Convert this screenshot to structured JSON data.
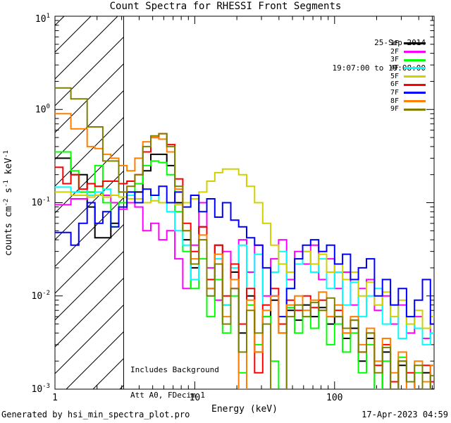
{
  "title": "Count Spectra for RHESSI Front Segments",
  "footer": {
    "left": "Generated by hsi_min_spectra_plot.pro",
    "right": "17-Apr-2023 04:59"
  },
  "chart_data": {
    "type": "line",
    "subtype": "log-log step spectra",
    "title": "Count Spectra for RHESSI Front Segments",
    "xlabel": "Energy (keV)",
    "ylabel": "counts cm-2 s-1 keV-1",
    "ylabel_segments": [
      {
        "t": "counts cm"
      },
      {
        "t": "-2",
        "sup": true
      },
      {
        "t": " s"
      },
      {
        "t": "-1",
        "sup": true
      },
      {
        "t": " keV"
      },
      {
        "t": "-1",
        "sup": true
      }
    ],
    "date_label": "25-Sep-2014",
    "time_label": "19:07:00 to 19:08:00",
    "annotations": [
      "Includes Background",
      "Att A0, FDecim 1"
    ],
    "grid": false,
    "legend_position": "top-right-inside",
    "xscale": "log",
    "yscale": "log",
    "xlim": [
      1,
      515
    ],
    "ylim": [
      0.001,
      10
    ],
    "x_major_ticks": [
      1,
      10,
      100
    ],
    "y_major_tick_exponents": [
      1,
      0,
      -1,
      -2,
      -3
    ],
    "hatch_region": {
      "x_from": 1,
      "x_to": 3.1
    },
    "energies_keV": [
      1.0,
      1.14,
      1.3,
      1.48,
      1.7,
      1.93,
      2.2,
      2.51,
      2.86,
      3.27,
      3.73,
      4.25,
      4.85,
      5.53,
      6.31,
      7.2,
      8.21,
      9.36,
      10.7,
      12.2,
      13.9,
      15.8,
      18.1,
      20.6,
      23.5,
      26.8,
      30.6,
      34.9,
      39.8,
      45.4,
      51.8,
      59.1,
      67.4,
      76.9,
      87.7,
      100,
      114,
      130,
      148,
      169,
      193,
      220,
      251,
      286,
      327,
      373,
      425,
      485
    ],
    "series": [
      {
        "name": "1F",
        "color": "#000000",
        "values": [
          0.3,
          0.3,
          0.2,
          0.2,
          0.09,
          0.042,
          0.042,
          0.06,
          0.1,
          0.1,
          0.13,
          0.22,
          0.33,
          0.33,
          0.25,
          0.1,
          0.04,
          0.02,
          0.055,
          0.012,
          0.035,
          0.008,
          0.018,
          0.004,
          0.01,
          0.0025,
          0.006,
          0.009,
          0.004,
          0.007,
          0.0055,
          0.008,
          0.006,
          0.0075,
          0.005,
          0.006,
          0.0035,
          0.0045,
          0.002,
          0.0035,
          0.0008,
          0.0025,
          0.001,
          0.0018,
          0.0012,
          0.0008,
          0.0015,
          0.001
        ]
      },
      {
        "name": "2F",
        "color": "#FF00FF",
        "values": [
          0.095,
          0.095,
          0.11,
          0.11,
          0.13,
          0.12,
          0.12,
          0.1,
          0.085,
          0.1,
          0.09,
          0.05,
          0.06,
          0.04,
          0.05,
          0.025,
          0.012,
          0.035,
          0.1,
          0.02,
          0.009,
          0.03,
          0.012,
          0.04,
          0.018,
          0.035,
          0.01,
          0.025,
          0.04,
          0.015,
          0.03,
          0.022,
          0.035,
          0.015,
          0.025,
          0.012,
          0.018,
          0.008,
          0.012,
          0.015,
          0.007,
          0.01,
          0.005,
          0.008,
          0.004,
          0.006,
          0.0035,
          0.005
        ]
      },
      {
        "name": "3F",
        "color": "#00FF00",
        "values": [
          0.35,
          0.35,
          0.22,
          0.13,
          0.13,
          0.25,
          0.1,
          0.055,
          0.1,
          0.13,
          0.16,
          0.25,
          0.28,
          0.27,
          0.2,
          0.08,
          0.03,
          0.012,
          0.025,
          0.006,
          0.015,
          0.004,
          0.01,
          0.0015,
          0.008,
          0.003,
          0.006,
          0.002,
          0.0008,
          0.0075,
          0.004,
          0.006,
          0.0045,
          0.007,
          0.003,
          0.005,
          0.0025,
          0.004,
          0.0015,
          0.003,
          0.001,
          0.002,
          0.0012,
          0.0022,
          0.0008,
          0.0015,
          0.001,
          0.0018
        ]
      },
      {
        "name": "4F",
        "color": "#00FFFF",
        "values": [
          0.147,
          0.147,
          0.13,
          0.14,
          0.12,
          0.13,
          0.14,
          0.12,
          0.13,
          0.12,
          0.11,
          0.1,
          0.12,
          0.1,
          0.08,
          0.05,
          0.035,
          0.015,
          0.04,
          0.01,
          0.025,
          0.008,
          0.02,
          0.035,
          0.012,
          0.028,
          0.008,
          0.018,
          0.03,
          0.012,
          0.022,
          0.03,
          0.018,
          0.025,
          0.012,
          0.018,
          0.008,
          0.014,
          0.006,
          0.01,
          0.012,
          0.005,
          0.008,
          0.0035,
          0.006,
          0.0045,
          0.003,
          0.004
        ]
      },
      {
        "name": "5F",
        "color": "#D1D100",
        "values": [
          0.13,
          0.13,
          0.12,
          0.12,
          0.115,
          0.12,
          0.115,
          0.12,
          0.115,
          0.11,
          0.11,
          0.1,
          0.105,
          0.1,
          0.1,
          0.095,
          0.1,
          0.11,
          0.13,
          0.17,
          0.21,
          0.23,
          0.23,
          0.2,
          0.15,
          0.1,
          0.06,
          0.035,
          0.022,
          0.018,
          0.025,
          0.03,
          0.022,
          0.028,
          0.018,
          0.022,
          0.015,
          0.018,
          0.01,
          0.014,
          0.008,
          0.011,
          0.006,
          0.009,
          0.005,
          0.007,
          0.0045,
          0.006
        ]
      },
      {
        "name": "6F",
        "color": "#FF0000",
        "values": [
          0.24,
          0.16,
          0.2,
          0.14,
          0.16,
          0.15,
          0.17,
          0.17,
          0.16,
          0.17,
          0.2,
          0.35,
          0.5,
          0.55,
          0.42,
          0.18,
          0.06,
          0.03,
          0.055,
          0.015,
          0.035,
          0.01,
          0.022,
          0.005,
          0.012,
          0.0015,
          0.008,
          0.012,
          0.005,
          0.009,
          0.007,
          0.01,
          0.0075,
          0.009,
          0.006,
          0.007,
          0.004,
          0.0055,
          0.0025,
          0.004,
          0.0018,
          0.003,
          0.0012,
          0.002,
          0.0015,
          0.001,
          0.0018,
          0.0012
        ]
      },
      {
        "name": "7F",
        "color": "#0000FF",
        "values": [
          0.048,
          0.048,
          0.035,
          0.06,
          0.1,
          0.06,
          0.08,
          0.055,
          0.09,
          0.13,
          0.1,
          0.14,
          0.12,
          0.15,
          0.1,
          0.13,
          0.09,
          0.12,
          0.08,
          0.11,
          0.07,
          0.1,
          0.065,
          0.055,
          0.042,
          0.035,
          0.02,
          0.01,
          0.006,
          0.012,
          0.025,
          0.035,
          0.04,
          0.03,
          0.035,
          0.022,
          0.028,
          0.015,
          0.02,
          0.025,
          0.01,
          0.015,
          0.008,
          0.012,
          0.006,
          0.009,
          0.015,
          0.005
        ]
      },
      {
        "name": "8F",
        "color": "#FF8000",
        "values": [
          0.9,
          0.9,
          0.62,
          0.62,
          0.4,
          0.38,
          0.33,
          0.3,
          0.25,
          0.22,
          0.3,
          0.45,
          0.5,
          0.48,
          0.35,
          0.14,
          0.05,
          0.025,
          0.045,
          0.012,
          0.028,
          0.006,
          0.015,
          0.0008,
          0.009,
          0.0025,
          0.007,
          0.01,
          0.004,
          0.008,
          0.01,
          0.007,
          0.009,
          0.011,
          0.006,
          0.008,
          0.004,
          0.006,
          0.003,
          0.0045,
          0.002,
          0.0035,
          0.0015,
          0.0025,
          0.001,
          0.002,
          0.0012,
          0.0018
        ]
      },
      {
        "name": "9F",
        "color": "#808000",
        "values": [
          1.7,
          1.7,
          1.3,
          1.3,
          0.65,
          0.65,
          0.28,
          0.28,
          0.13,
          0.15,
          0.2,
          0.4,
          0.52,
          0.55,
          0.4,
          0.15,
          0.05,
          0.022,
          0.04,
          0.01,
          0.022,
          0.005,
          0.012,
          0.0025,
          0.007,
          0.004,
          0.005,
          0.0008,
          0.0008,
          0.006,
          0.008,
          0.006,
          0.0085,
          0.007,
          0.0095,
          0.006,
          0.0045,
          0.0055,
          0.0025,
          0.004,
          0.0015,
          0.0028,
          0.001,
          0.002,
          0.0012,
          0.0018,
          0.0008,
          0.0014
        ]
      }
    ]
  }
}
